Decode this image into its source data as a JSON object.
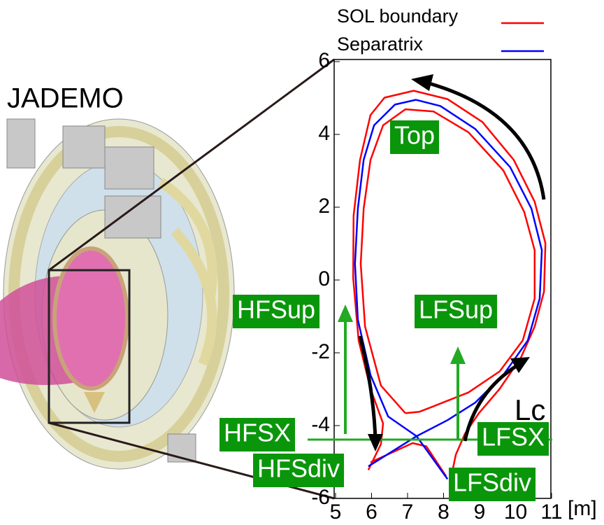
{
  "chart_data": {
    "type": "line",
    "device_label": "JADEMO",
    "x_label": "[m]",
    "xlim": [
      5,
      11
    ],
    "ylim": [
      -6,
      6
    ],
    "xticks": [
      5,
      6,
      7,
      8,
      9,
      10,
      11
    ],
    "yticks": [
      -6,
      -4,
      -2,
      0,
      2,
      4,
      6
    ],
    "series": [
      {
        "name": "SOL boundary",
        "color": "#ff0000",
        "x": [
          5.91,
          6.26,
          6.32,
          5.97,
          5.64,
          5.49,
          5.5,
          5.68,
          5.97,
          6.36,
          7.17,
          8.11,
          9.08,
          9.95,
          10.53,
          10.83,
          10.79,
          10.53,
          10.15,
          9.56,
          8.98,
          8.59,
          8.34,
          8.2,
          null,
          6.94,
          6.26,
          5.82,
          5.7,
          5.78,
          5.97,
          6.32,
          6.94,
          7.72,
          8.69,
          9.66,
          10.24,
          10.53,
          10.53,
          10.2,
          9.56,
          8.69,
          7.72,
          7.33,
          6.94,
          null,
          5.97,
          7.14,
          7.52,
          8.07
        ],
        "values": [
          -5.22,
          -4.51,
          -3.94,
          -2.99,
          -1.66,
          0.06,
          1.77,
          3.3,
          4.53,
          5.01,
          5.2,
          4.97,
          4.34,
          3.3,
          2.15,
          1.01,
          -0.32,
          -1.28,
          -2.13,
          -2.99,
          -3.66,
          -4.23,
          -4.8,
          -5.47,
          null,
          -3.66,
          -2.9,
          -1.28,
          0.44,
          1.96,
          3.3,
          4.25,
          4.69,
          4.63,
          4.06,
          3.01,
          1.87,
          0.82,
          -0.51,
          -1.66,
          -2.51,
          -3.09,
          -3.47,
          -3.62,
          -3.66,
          null,
          -5.01,
          -4.48,
          -4.57,
          -5.39
        ]
      },
      {
        "name": "Separatrix",
        "color": "#0000ff",
        "x": [
          5.91,
          7.25,
          6.46,
          5.97,
          5.62,
          5.54,
          5.62,
          5.78,
          6.07,
          6.65,
          7.23,
          7.91,
          8.88,
          9.85,
          10.44,
          10.73,
          10.67,
          10.34,
          9.66,
          8.88,
          8.11,
          7.25,
          8.11
        ],
        "values": [
          -5.12,
          -4.29,
          -3.75,
          -2.61,
          -1.09,
          0.44,
          1.96,
          3.3,
          4.25,
          4.82,
          4.95,
          4.78,
          4.15,
          3.1,
          1.96,
          0.82,
          -0.51,
          -1.66,
          -2.61,
          -3.37,
          -3.85,
          -4.29,
          -5.47
        ]
      }
    ],
    "annotations": [
      "Top",
      "HFSup",
      "LFSup",
      "HFSX",
      "LFSX",
      "HFSdiv",
      "LFSdiv",
      "Lc"
    ]
  }
}
